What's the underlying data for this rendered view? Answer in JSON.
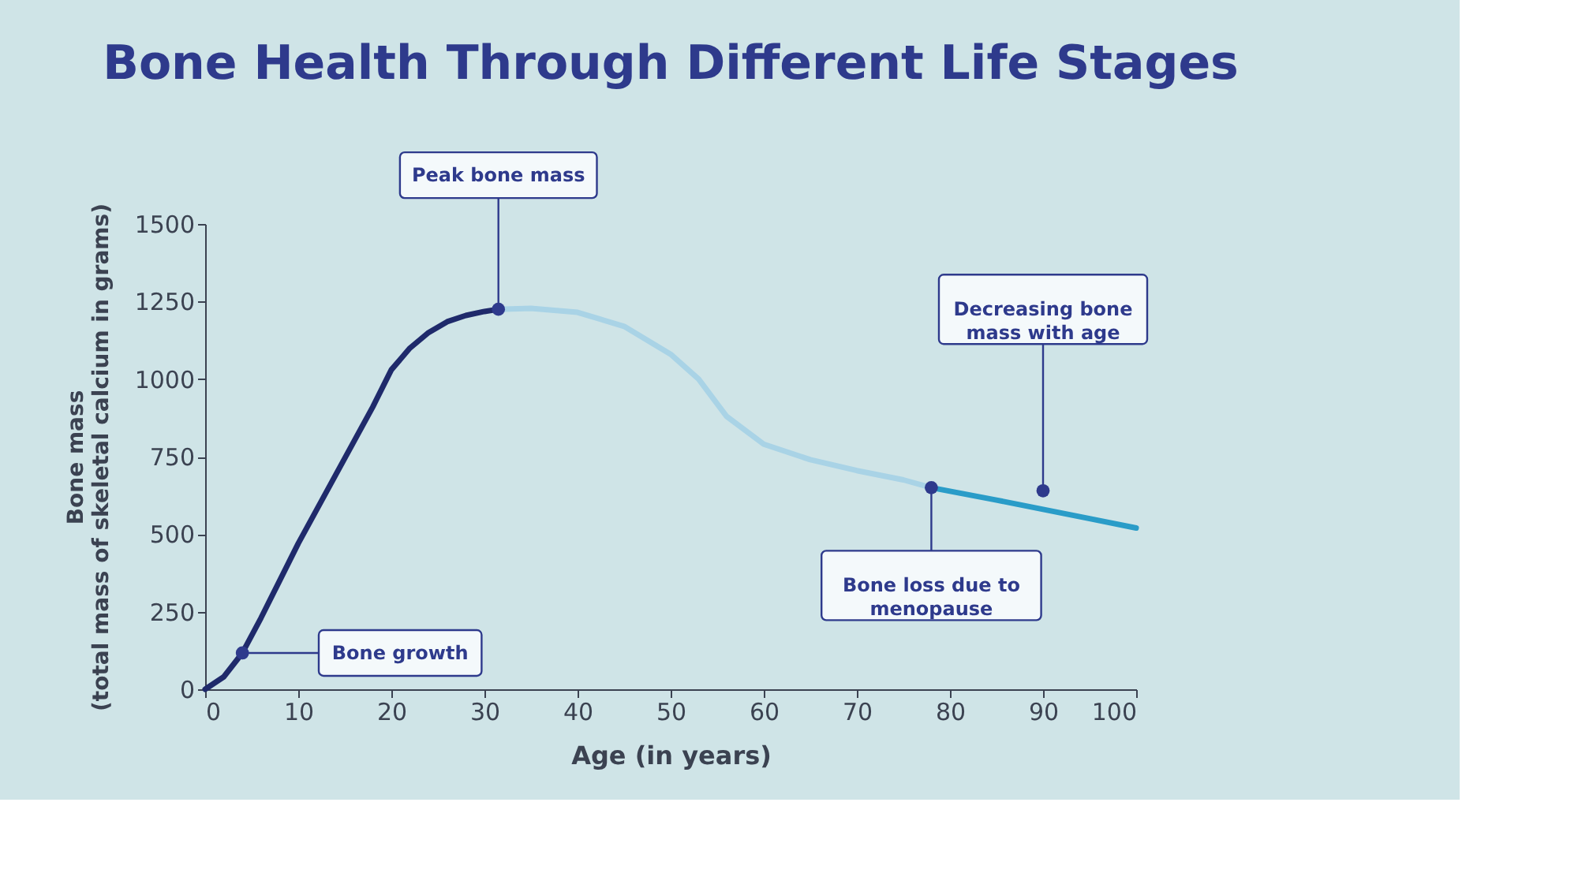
{
  "chart_data": {
    "type": "line",
    "title": "Bone Health Through Different Life Stages",
    "xlabel": "Age (in years)",
    "ylabel": "Bone mass (total mass of skeletal calcium in grams)",
    "xlim": [
      0,
      100
    ],
    "xticks": [
      0,
      10,
      20,
      30,
      40,
      50,
      60,
      70,
      80,
      90,
      100
    ],
    "ylim": [
      0,
      1500
    ],
    "yticks": [
      0,
      250,
      500,
      750,
      1000,
      1250,
      1500
    ],
    "grid": false,
    "marker": "none",
    "line_style": "solid",
    "series": [
      {
        "color": "#1f2a6b",
        "x": [
          0,
          2,
          4,
          6,
          8,
          10,
          12,
          14,
          16,
          18,
          20,
          22,
          24,
          26,
          28,
          30,
          31.5
        ],
        "values": [
          0,
          40,
          117,
          230,
          350,
          470,
          580,
          690,
          800,
          910,
          1030,
          1100,
          1150,
          1185,
          1205,
          1218,
          1225
        ]
      },
      {
        "color": "#a9d3e6",
        "x": [
          31.5,
          35,
          40,
          45,
          50,
          53,
          56,
          60,
          65,
          70,
          75,
          78
        ],
        "values": [
          1225,
          1228,
          1215,
          1170,
          1080,
          1000,
          880,
          790,
          740,
          705,
          675,
          650
        ]
      },
      {
        "color": "#2a9cc8",
        "x": [
          78,
          85,
          90,
          95,
          100
        ],
        "values": [
          650,
          610,
          580,
          550,
          520
        ]
      }
    ],
    "annotations": [
      {
        "text": "Bone growth",
        "x": 4,
        "y": 117
      },
      {
        "text": "Peak bone mass",
        "x": 31.5,
        "y": 1225
      },
      {
        "text": "Bone loss due to menopause",
        "x": 78,
        "y": 650
      },
      {
        "text": "Decreasing bone mass with age",
        "x": 90,
        "y": 640
      }
    ]
  }
}
